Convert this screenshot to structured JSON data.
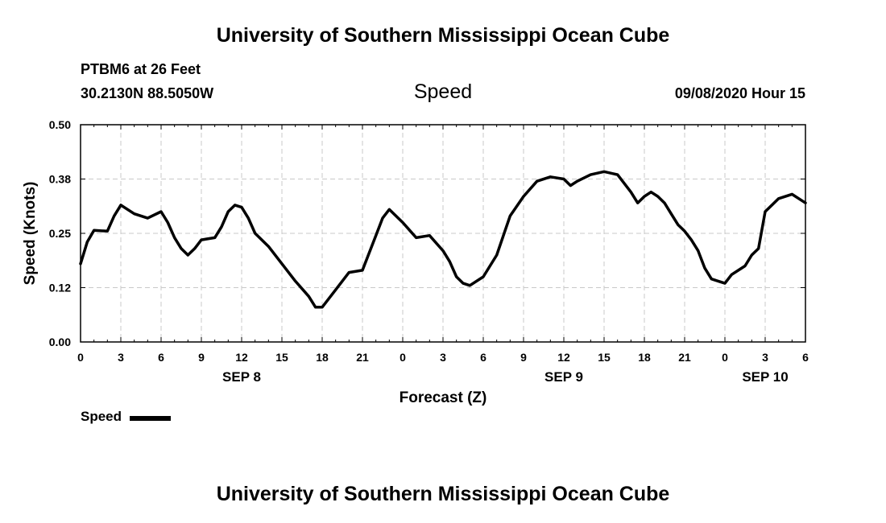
{
  "header": {
    "title_top": "University of Southern Mississippi Ocean Cube",
    "station": "PTBM6 at 26 Feet",
    "location": "30.2130N 88.5050W",
    "panel_title": "Speed",
    "timestamp": "09/08/2020 Hour 15",
    "title_bottom": "University of Southern Mississippi Ocean Cube"
  },
  "legend": {
    "label": "Speed"
  },
  "chart_data": {
    "type": "line",
    "title": "Speed",
    "xlabel": "Forecast (Z)",
    "ylabel": "Speed (Knots)",
    "ylim": [
      0,
      0.5
    ],
    "xlim": [
      0,
      54
    ],
    "x_unit": "hours from 09/08/2020 00Z",
    "y_ticks": [
      "0.00",
      "0.12",
      "0.25",
      "0.38",
      "0.50"
    ],
    "y_tick_values": [
      0,
      0.125,
      0.25,
      0.375,
      0.5
    ],
    "x_ticks": [
      0,
      3,
      6,
      9,
      12,
      15,
      18,
      21,
      24,
      27,
      30,
      33,
      36,
      39,
      42,
      45,
      48,
      51,
      54
    ],
    "x_tick_labels": [
      "0",
      "3",
      "6",
      "9",
      "12",
      "15",
      "18",
      "21",
      "0",
      "3",
      "6",
      "9",
      "12",
      "15",
      "18",
      "21",
      "0",
      "3",
      "6"
    ],
    "date_labels": [
      {
        "text": "SEP 8",
        "x": 12
      },
      {
        "text": "SEP 9",
        "x": 36
      },
      {
        "text": "SEP 10",
        "x": 51
      }
    ],
    "grid": true,
    "legend_position": "bottom-left",
    "series": [
      {
        "name": "Speed",
        "color": "#000000",
        "x": [
          0,
          0.5,
          1,
          2,
          2.5,
          3,
          4,
          5,
          6,
          6.5,
          7,
          7.5,
          8,
          8.5,
          9,
          10,
          10.5,
          11,
          11.5,
          12,
          12.5,
          13,
          14,
          15,
          16,
          17,
          17.5,
          18,
          19,
          20,
          21,
          22,
          22.5,
          23,
          24,
          25,
          26,
          27,
          27.5,
          28,
          28.5,
          29,
          30,
          31,
          31.5,
          32,
          33,
          34,
          35,
          36,
          36.5,
          37,
          38,
          39,
          40,
          41,
          41.5,
          42,
          42.5,
          43,
          43.5,
          44,
          44.5,
          45,
          45.5,
          46,
          46.5,
          47,
          47.5,
          48,
          48.5,
          49,
          49.5,
          50,
          50.5,
          51,
          52,
          53,
          53.5,
          54
        ],
        "y": [
          0.18,
          0.23,
          0.257,
          0.255,
          0.29,
          0.315,
          0.295,
          0.285,
          0.3,
          0.275,
          0.24,
          0.215,
          0.2,
          0.215,
          0.235,
          0.24,
          0.265,
          0.3,
          0.315,
          0.31,
          0.285,
          0.25,
          0.22,
          0.18,
          0.14,
          0.105,
          0.08,
          0.08,
          0.12,
          0.16,
          0.165,
          0.245,
          0.285,
          0.305,
          0.275,
          0.24,
          0.245,
          0.21,
          0.185,
          0.15,
          0.135,
          0.13,
          0.15,
          0.2,
          0.245,
          0.29,
          0.335,
          0.37,
          0.38,
          0.375,
          0.36,
          0.37,
          0.385,
          0.392,
          0.385,
          0.345,
          0.32,
          0.335,
          0.345,
          0.335,
          0.32,
          0.295,
          0.27,
          0.255,
          0.235,
          0.21,
          0.17,
          0.145,
          0.14,
          0.135,
          0.155,
          0.165,
          0.175,
          0.2,
          0.215,
          0.3,
          0.33,
          0.34,
          0.33,
          0.32
        ]
      }
    ]
  }
}
